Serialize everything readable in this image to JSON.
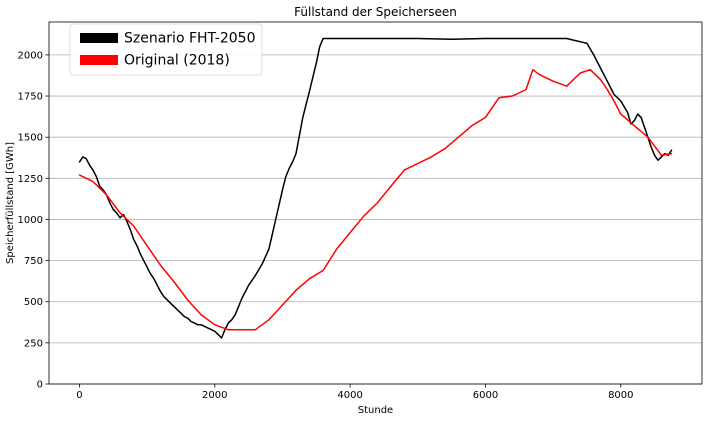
{
  "chart_data": {
    "type": "line",
    "title": "Füllstand der Speicherseen",
    "xlabel": "Stunde",
    "ylabel": "Speicherfüllstand [GWh]",
    "xlim": [
      -450,
      9200
    ],
    "ylim": [
      0,
      2200
    ],
    "xticks": [
      0,
      2000,
      4000,
      6000,
      8000
    ],
    "yticks": [
      0,
      250,
      500,
      750,
      1000,
      1250,
      1500,
      1750,
      2000
    ],
    "grid": "horizontal",
    "legend_position": "top-left",
    "series": [
      {
        "name": "Szenario FHT-2050",
        "color": "#000000",
        "x": [
          0,
          50,
          100,
          150,
          200,
          250,
          300,
          350,
          400,
          450,
          500,
          550,
          600,
          650,
          700,
          750,
          800,
          850,
          900,
          950,
          1000,
          1050,
          1100,
          1150,
          1200,
          1250,
          1300,
          1350,
          1400,
          1450,
          1500,
          1550,
          1600,
          1650,
          1700,
          1750,
          1800,
          1850,
          1900,
          1950,
          2000,
          2050,
          2100,
          2150,
          2200,
          2250,
          2300,
          2350,
          2400,
          2500,
          2600,
          2700,
          2800,
          2900,
          3000,
          3050,
          3100,
          3150,
          3200,
          3300,
          3400,
          3500,
          3550,
          3600,
          3650,
          4000,
          4500,
          5000,
          5500,
          6000,
          6500,
          7000,
          7200,
          7300,
          7400,
          7500,
          7600,
          7700,
          7800,
          7900,
          8000,
          8100,
          8150,
          8200,
          8250,
          8300,
          8350,
          8400,
          8450,
          8500,
          8550,
          8600,
          8650,
          8700,
          8750
        ],
        "values": [
          1350,
          1380,
          1370,
          1330,
          1300,
          1260,
          1200,
          1180,
          1150,
          1100,
          1060,
          1040,
          1010,
          1030,
          990,
          940,
          880,
          840,
          790,
          750,
          710,
          670,
          640,
          600,
          560,
          530,
          510,
          490,
          470,
          450,
          430,
          410,
          400,
          380,
          370,
          360,
          360,
          350,
          340,
          330,
          320,
          300,
          280,
          330,
          370,
          390,
          420,
          470,
          520,
          600,
          660,
          730,
          820,
          1000,
          1180,
          1260,
          1310,
          1350,
          1400,
          1620,
          1780,
          1950,
          2050,
          2100,
          2100,
          2100,
          2100,
          2100,
          2095,
          2100,
          2100,
          2100,
          2100,
          2090,
          2080,
          2070,
          2000,
          1920,
          1840,
          1760,
          1720,
          1650,
          1580,
          1600,
          1640,
          1620,
          1560,
          1500,
          1440,
          1390,
          1360,
          1380,
          1400,
          1390,
          1420
        ]
      },
      {
        "name": "Original (2018)",
        "color": "#ff0000",
        "x": [
          0,
          200,
          400,
          600,
          800,
          1000,
          1200,
          1400,
          1600,
          1800,
          2000,
          2200,
          2400,
          2600,
          2800,
          3000,
          3200,
          3400,
          3600,
          3800,
          4000,
          4200,
          4400,
          4600,
          4800,
          5000,
          5200,
          5400,
          5600,
          5800,
          6000,
          6200,
          6400,
          6600,
          6700,
          6800,
          7000,
          7200,
          7400,
          7550,
          7700,
          7800,
          7900,
          8000,
          8200,
          8400,
          8600,
          8750
        ],
        "values": [
          1270,
          1230,
          1150,
          1040,
          960,
          840,
          720,
          620,
          510,
          420,
          360,
          330,
          330,
          330,
          390,
          480,
          570,
          640,
          690,
          820,
          920,
          1020,
          1100,
          1200,
          1300,
          1340,
          1380,
          1430,
          1500,
          1570,
          1620,
          1740,
          1750,
          1790,
          1910,
          1880,
          1840,
          1810,
          1890,
          1910,
          1850,
          1790,
          1720,
          1640,
          1570,
          1500,
          1390,
          1400
        ]
      }
    ]
  }
}
